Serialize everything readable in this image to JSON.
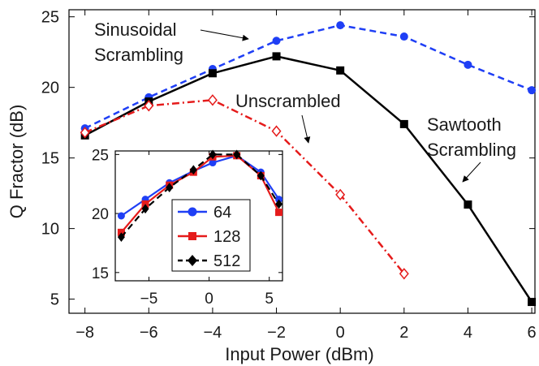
{
  "chart_data": [
    {
      "type": "line",
      "xlabel": "Input Power (dBm)",
      "ylabel": "Q Fractor (dB)",
      "xlim": [
        -8.5,
        6.1
      ],
      "ylim": [
        4.0,
        25.5
      ],
      "xticks": [
        -8,
        -6,
        -4,
        -2,
        0,
        2,
        4,
        6
      ],
      "yticks": [
        5,
        10,
        15,
        20,
        25
      ],
      "grid": false,
      "series": [
        {
          "name": "Sinusoidal Scrambling",
          "color": "#1f3ff5",
          "line": "dashed",
          "marker": "circle",
          "x": [
            -8,
            -6,
            -4,
            -2,
            0,
            2,
            4,
            6
          ],
          "y": [
            17.1,
            19.3,
            21.3,
            23.3,
            24.4,
            23.6,
            21.6,
            19.8
          ]
        },
        {
          "name": "Sawtooth Scrambling",
          "color": "#000000",
          "line": "solid",
          "marker": "square",
          "x": [
            -8,
            -6,
            -4,
            -2,
            0,
            2,
            4,
            6
          ],
          "y": [
            16.6,
            19.0,
            21.0,
            22.2,
            21.2,
            17.4,
            11.7,
            4.8
          ]
        },
        {
          "name": "Unscrambled",
          "color": "#e51b1b",
          "line": "dashdot",
          "marker": "diamond-open",
          "x": [
            -8,
            -6,
            -4,
            -2,
            0,
            2
          ],
          "y": [
            16.8,
            18.7,
            19.1,
            16.9,
            12.4,
            6.8
          ]
        }
      ],
      "annotations": [
        {
          "text": "Sinusoidal",
          "points_to": "Sinusoidal Scrambling"
        },
        {
          "text": "Scrambling",
          "points_to": "Sinusoidal Scrambling"
        },
        {
          "text": "Unscrambled",
          "points_to": "Unscrambled"
        },
        {
          "text": "Sawtooth",
          "points_to": "Sawtooth Scrambling"
        },
        {
          "text": "Scrambling",
          "points_to": "Sawtooth Scrambling"
        }
      ]
    },
    {
      "type": "line",
      "role": "inset",
      "xlim": [
        -7.8,
        6.1
      ],
      "ylim": [
        14.3,
        25.3
      ],
      "xticks": [
        -5,
        0,
        5
      ],
      "yticks": [
        15,
        20,
        25
      ],
      "grid": false,
      "legend_position": "bottom-center",
      "series": [
        {
          "name": "64",
          "color": "#1f3ff5",
          "line": "solid",
          "marker": "circle",
          "x": [
            -7.3,
            -5.3,
            -3.3,
            -1.3,
            0.3,
            2.3,
            4.3,
            5.8
          ],
          "y": [
            19.8,
            21.2,
            22.6,
            23.6,
            24.3,
            24.9,
            23.5,
            21.2
          ]
        },
        {
          "name": "128",
          "color": "#e51b1b",
          "line": "solid",
          "marker": "square",
          "x": [
            -7.3,
            -5.3,
            -3.3,
            -1.3,
            0.3,
            2.3,
            4.3,
            5.8
          ],
          "y": [
            18.4,
            20.8,
            22.4,
            23.5,
            24.8,
            24.9,
            23.2,
            20.1
          ]
        },
        {
          "name": "512",
          "color": "#000000",
          "line": "dashed",
          "marker": "diamond",
          "x": [
            -7.3,
            -5.3,
            -3.3,
            -1.3,
            0.3,
            2.3,
            4.3,
            5.8
          ],
          "y": [
            18.0,
            20.4,
            22.2,
            23.7,
            25.0,
            25.0,
            23.2,
            20.8
          ]
        }
      ]
    }
  ]
}
